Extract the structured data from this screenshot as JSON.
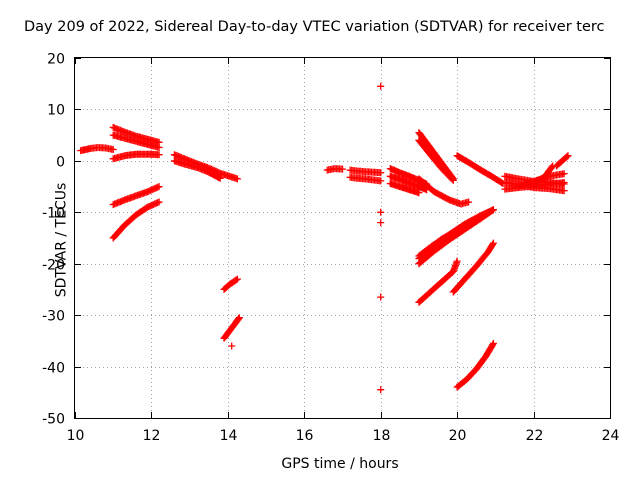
{
  "chart_data": {
    "type": "scatter",
    "title": "Day 209 of 2022, Sidereal Day-to-day VTEC variation (SDTVAR) for receiver terc",
    "xlabel": "GPS time / hours",
    "ylabel": "SDTVAR / TECUs",
    "xlim": [
      10,
      24
    ],
    "ylim": [
      -50,
      20
    ],
    "xticks": [
      10,
      12,
      14,
      16,
      18,
      20,
      22,
      24
    ],
    "yticks": [
      -50,
      -40,
      -30,
      -20,
      -10,
      0,
      10,
      20
    ],
    "grid": true,
    "marker": "+",
    "color": "#ff0000",
    "segments": [
      {
        "x": [
          10.15,
          10.4,
          10.6,
          10.8,
          11.0
        ],
        "y": [
          2.0,
          2.4,
          2.6,
          2.5,
          2.2
        ]
      },
      {
        "x": [
          11.0,
          11.3,
          11.6,
          11.9,
          12.2
        ],
        "y": [
          6.5,
          5.6,
          4.8,
          4.2,
          3.6
        ]
      },
      {
        "x": [
          11.0,
          11.3,
          11.6,
          11.9,
          12.2
        ],
        "y": [
          5.0,
          4.4,
          3.8,
          3.2,
          2.6
        ]
      },
      {
        "x": [
          11.0,
          11.3,
          11.6,
          11.9,
          12.2
        ],
        "y": [
          0.4,
          1.0,
          1.3,
          1.3,
          1.2
        ]
      },
      {
        "x": [
          11.0,
          11.3,
          11.6,
          11.9,
          12.2
        ],
        "y": [
          -8.5,
          -7.6,
          -6.8,
          -6.0,
          -5.0
        ]
      },
      {
        "x": [
          11.0,
          11.3,
          11.6,
          11.9,
          12.2
        ],
        "y": [
          -15.0,
          -12.5,
          -10.5,
          -9.0,
          -8.0
        ]
      },
      {
        "x": [
          12.6,
          12.9,
          13.2,
          13.5,
          13.8,
          14.25
        ],
        "y": [
          1.2,
          0.3,
          -0.6,
          -1.4,
          -2.4,
          -3.5
        ]
      },
      {
        "x": [
          12.6,
          12.9,
          13.2,
          13.5,
          13.8
        ],
        "y": [
          0.0,
          -0.7,
          -1.3,
          -2.2,
          -3.4
        ]
      },
      {
        "x": [
          13.9,
          14.05,
          14.25
        ],
        "y": [
          -25.0,
          -24.0,
          -23.0
        ]
      },
      {
        "x": [
          13.9,
          14.05,
          14.2,
          14.3
        ],
        "y": [
          -34.5,
          -33.0,
          -31.5,
          -30.5
        ]
      },
      {
        "x": [
          14.1
        ],
        "y": [
          -36.0
        ]
      },
      {
        "x": [
          16.6,
          16.8,
          17.0
        ],
        "y": [
          -1.8,
          -1.5,
          -1.6
        ]
      },
      {
        "x": [
          17.2,
          17.4,
          17.6,
          17.8,
          18.0
        ],
        "y": [
          -1.8,
          -2.0,
          -2.1,
          -2.2,
          -2.3
        ]
      },
      {
        "x": [
          17.2,
          17.4,
          17.6,
          17.8,
          18.0
        ],
        "y": [
          -3.2,
          -3.4,
          -3.5,
          -3.7,
          -3.9
        ]
      },
      {
        "x": [
          18.0
        ],
        "y": [
          14.5
        ]
      },
      {
        "x": [
          18.0
        ],
        "y": [
          -10.0
        ]
      },
      {
        "x": [
          18.0
        ],
        "y": [
          -12.0
        ]
      },
      {
        "x": [
          18.0
        ],
        "y": [
          -26.5
        ]
      },
      {
        "x": [
          18.0
        ],
        "y": [
          -44.5
        ]
      },
      {
        "x": [
          18.25,
          18.5,
          18.75,
          19.0,
          19.2
        ],
        "y": [
          -1.5,
          -2.3,
          -3.0,
          -3.8,
          -4.5
        ]
      },
      {
        "x": [
          18.25,
          18.5,
          18.75,
          19.0,
          19.2
        ],
        "y": [
          -3.0,
          -3.6,
          -4.3,
          -5.0,
          -5.6
        ]
      },
      {
        "x": [
          18.25,
          18.5,
          18.75,
          19.0
        ],
        "y": [
          -4.4,
          -5.0,
          -5.6,
          -6.2
        ]
      },
      {
        "x": [
          19.0,
          19.3,
          19.6,
          19.9
        ],
        "y": [
          5.5,
          2.5,
          -0.5,
          -3.5
        ]
      },
      {
        "x": [
          19.0,
          19.3,
          19.6,
          19.9
        ],
        "y": [
          4.0,
          1.2,
          -1.5,
          -3.8
        ]
      },
      {
        "x": [
          19.0,
          19.4,
          19.8,
          20.1,
          20.3
        ],
        "y": [
          -3.5,
          -6.0,
          -7.6,
          -8.4,
          -8.0
        ]
      },
      {
        "x": [
          20.0,
          20.3,
          20.6,
          20.9,
          21.2
        ],
        "y": [
          1.0,
          -0.3,
          -1.7,
          -3.0,
          -4.4
        ]
      },
      {
        "x": [
          19.0,
          19.4,
          19.8,
          20.2,
          20.6,
          20.95
        ],
        "y": [
          -20.0,
          -17.5,
          -15.3,
          -13.3,
          -11.3,
          -9.5
        ]
      },
      {
        "x": [
          19.0,
          19.4,
          19.8,
          20.2,
          20.6,
          20.95
        ],
        "y": [
          -19.0,
          -16.5,
          -14.3,
          -12.3,
          -10.7,
          -9.5
        ]
      },
      {
        "x": [
          19.0,
          19.3,
          19.6,
          20.0
        ],
        "y": [
          -18.5,
          -16.8,
          -15.2,
          -13.5
        ]
      },
      {
        "x": [
          19.0,
          19.3,
          19.6,
          19.9,
          20.0
        ],
        "y": [
          -27.5,
          -25.5,
          -23.5,
          -21.5,
          -19.5
        ]
      },
      {
        "x": [
          19.9,
          20.2,
          20.5,
          20.8,
          20.95
        ],
        "y": [
          -25.5,
          -23.0,
          -20.5,
          -17.8,
          -16.0
        ]
      },
      {
        "x": [
          20.0,
          20.25,
          20.5,
          20.75,
          20.95
        ],
        "y": [
          -44.0,
          -42.5,
          -40.5,
          -38.0,
          -35.5
        ]
      },
      {
        "x": [
          21.25,
          21.6,
          22.0,
          22.4,
          22.8
        ],
        "y": [
          -3.0,
          -3.5,
          -4.0,
          -4.2,
          -4.5
        ]
      },
      {
        "x": [
          21.25,
          21.6,
          22.0,
          22.4,
          22.8
        ],
        "y": [
          -4.2,
          -4.6,
          -5.2,
          -5.4,
          -5.8
        ]
      },
      {
        "x": [
          21.25,
          21.6,
          22.0,
          22.4,
          22.8
        ],
        "y": [
          -5.5,
          -5.2,
          -4.9,
          -4.6,
          -4.2
        ]
      },
      {
        "x": [
          21.6,
          22.0,
          22.4,
          22.8
        ],
        "y": [
          -5.0,
          -4.0,
          -3.0,
          -2.5
        ]
      },
      {
        "x": [
          22.0,
          22.3,
          22.5
        ],
        "y": [
          -4.5,
          -3.0,
          -1.0
        ]
      },
      {
        "x": [
          22.6,
          22.75,
          22.9
        ],
        "y": [
          -1.0,
          0.0,
          1.0
        ]
      }
    ]
  }
}
